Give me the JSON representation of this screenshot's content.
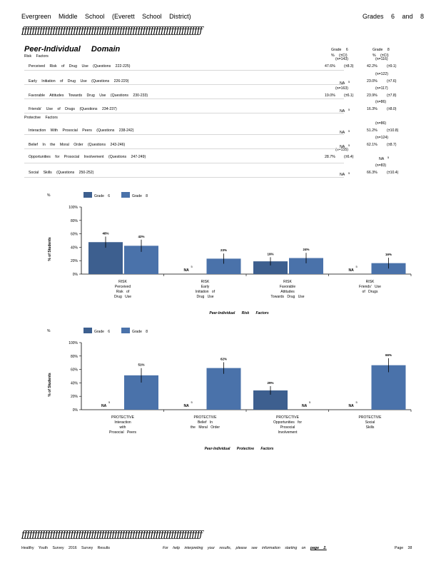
{
  "header": {
    "school": "Evergreen Middle School (Everett School District)",
    "grades": "Grades 6 and 8"
  },
  "decoration": "ƒƒƒƒƒƒƒƒƒƒƒƒƒƒƒƒƒƒƒƒƒƒƒƒƒƒƒƒƒƒƒƒƒƒƒƒƒƒƒƒƒƒƒƒƒƒƒƒƒƒƒƒƒƒƒƒƒƒƒƒƒƒƒƒƒƒƒƒƒƒ",
  "domain_title": "Peer-Individual Domain",
  "risk_factors_label": "Risk Factors",
  "protective_factors_label": "Protective Factors",
  "col_headers": {
    "grade6": "Grade 6",
    "grade8": "Grade 8",
    "pct_ci": "% (±CI)"
  },
  "factors": [
    {
      "label": "Perceived Risk of Drug Use (Questions 222-225)",
      "g6_n": "(n=143)",
      "g6_val": "47.6%",
      "g6_ci": "(±8.3)",
      "g8_n": "(n=116)",
      "g8_val": "42.2%",
      "g8_ci": "(±9.1)"
    },
    {
      "label": "Early Initiation of Drug Use (Questions 226-229)",
      "g6_n": "",
      "g6_val": "NA",
      "g6_ci": "5",
      "g8_n": "(n=122)",
      "g8_val": "23.0%",
      "g8_ci": "(±7.6)"
    },
    {
      "label": "Favorable Attitudes Towards Drug Use (Questions 230-233)",
      "g6_n": "(n=163)",
      "g6_val": "19.0%",
      "g6_ci": "(±6.1)",
      "g8_n": "(n=117)",
      "g8_val": "23.9%",
      "g8_ci": "(±7.8)"
    },
    {
      "label": "Friends' Use of Drugs (Questions 234-237)",
      "g6_n": "",
      "g6_val": "NA",
      "g6_ci": "5",
      "g8_n": "(n=86)",
      "g8_val": "16.3%",
      "g8_ci": "(±8.0)"
    },
    {
      "label": "Interaction With Prosocial Peers (Questions 238-242)",
      "g6_n": "",
      "g6_val": "NA",
      "g6_ci": "5",
      "g8_n": "(n=86)",
      "g8_val": "51.2%",
      "g8_ci": "(±10.8)"
    },
    {
      "label": "Belief In the Moral Order (Questions 243-246)",
      "g6_n": "",
      "g6_val": "NA",
      "g6_ci": "5",
      "g8_n": "(n=124)",
      "g8_val": "62.1%",
      "g8_ci": "(±8.7)"
    },
    {
      "label": "Opportunities for Prosocial Involvement (Questions 247-249)",
      "g6_n": "(n=155)",
      "g6_val": "28.7%",
      "g6_ci": "(±6.4)",
      "g8_n": "",
      "g8_val": "NA",
      "g8_ci": "5"
    },
    {
      "label": "Social Skills (Questions 250-252)",
      "g6_n": "",
      "g6_val": "NA",
      "g6_ci": "5",
      "g8_n": "(n=83)",
      "g8_val": "66.3%",
      "g8_ci": "(±10.4)"
    }
  ],
  "colors": {
    "grade6": "#3d5f8f",
    "grade8": "#4a72aa",
    "axis": "#000000"
  },
  "chart_data": [
    {
      "type": "bar",
      "title": "",
      "xlabel": "Peer-Individual Risk Factors",
      "ylabel": "% of Students",
      "ylabel_top": "%",
      "ylim": [
        0,
        100
      ],
      "yticks": [
        "0%",
        "20%",
        "40%",
        "60%",
        "80%",
        "100%"
      ],
      "legend": [
        "Grade 6",
        "Grade 8"
      ],
      "categories": [
        [
          "RISK",
          "Perceived",
          "Risk of",
          "Drug Use"
        ],
        [
          "RISK",
          "Early",
          "Initiation of",
          "Drug Use"
        ],
        [
          "RISK",
          "Favorable",
          "Attitudes",
          "Towards Drug Use"
        ],
        [
          "RISK",
          "Friends' Use",
          "of Drugs"
        ]
      ],
      "series": [
        {
          "name": "Grade 6",
          "values": [
            47.6,
            null,
            19.0,
            null
          ],
          "ci": [
            8.3,
            null,
            6.1,
            null
          ],
          "labels": [
            "48%",
            "NA",
            "19%",
            "NA"
          ]
        },
        {
          "name": "Grade 8",
          "values": [
            42.2,
            23.0,
            23.9,
            16.3
          ],
          "ci": [
            9.1,
            7.6,
            7.8,
            8.0
          ],
          "labels": [
            "42%",
            "23%",
            "24%",
            "16%"
          ]
        }
      ],
      "na_note": "5"
    },
    {
      "type": "bar",
      "title": "",
      "xlabel": "Peer-Individual Protective Factors",
      "ylabel": "% of Students",
      "ylabel_top": "%",
      "ylim": [
        0,
        100
      ],
      "yticks": [
        "0%",
        "20%",
        "40%",
        "60%",
        "80%",
        "100%"
      ],
      "legend": [
        "Grade 6",
        "Grade 8"
      ],
      "categories": [
        [
          "PROTECTIVE",
          "Interaction",
          "with",
          "Prosocial Peers"
        ],
        [
          "PROTECTIVE",
          "Belief In",
          "the Moral Order"
        ],
        [
          "PROTECTIVE",
          "Opportunities for",
          "Prosocial",
          "Involvement"
        ],
        [
          "PROTECTIVE",
          "Social",
          "Skills"
        ]
      ],
      "series": [
        {
          "name": "Grade 6",
          "values": [
            null,
            null,
            28.7,
            null
          ],
          "ci": [
            null,
            null,
            6.4,
            null
          ],
          "labels": [
            "NA",
            "NA",
            "29%",
            "NA"
          ]
        },
        {
          "name": "Grade 8",
          "values": [
            51.2,
            62.1,
            null,
            66.3
          ],
          "ci": [
            10.8,
            8.7,
            null,
            10.4
          ],
          "labels": [
            "51%",
            "62%",
            "NA",
            "66%"
          ]
        }
      ],
      "na_note": "5"
    }
  ],
  "footer": {
    "left": "Healthy Youth Survey 2016 Survey Results",
    "middle": "For help interpreting your results, please see information starting on",
    "page_link": "page 2.",
    "right": "Page 38"
  }
}
